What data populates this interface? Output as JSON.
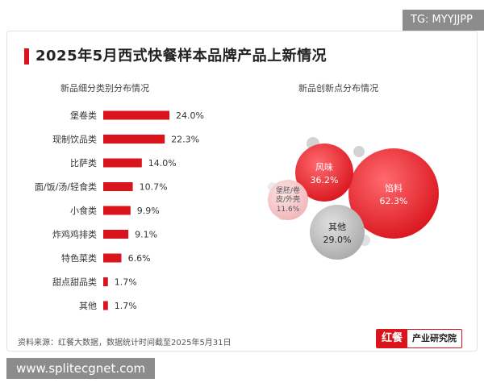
{
  "overlays": {
    "tg_badge": "TG: MYYJJPP",
    "url_badge": "www.splitecgnet.com"
  },
  "header": {
    "title": "2025年5月西式快餐样本品牌产品上新情况"
  },
  "footer": {
    "source": "资料来源：红餐大数据，数据统计时间截至2025年5月31日",
    "logo_left": "红餐",
    "logo_right": "产业研究院"
  },
  "colors": {
    "accent_red": "#d9141c",
    "bubble_red": "#e8323a",
    "bubble_gray": "#bdbdbd"
  },
  "chart_data": [
    {
      "type": "bar",
      "orientation": "horizontal",
      "title": "新品细分类别分布情况",
      "categories": [
        "堡卷类",
        "现制饮品类",
        "比萨类",
        "面/饭/汤/轻食类",
        "小食类",
        "炸鸡鸡排类",
        "特色菜类",
        "甜点甜品类",
        "其他"
      ],
      "values": [
        24.0,
        22.3,
        14.0,
        10.7,
        9.9,
        9.1,
        6.6,
        1.7,
        1.7
      ],
      "value_labels": [
        "24.0%",
        "22.3%",
        "14.0%",
        "10.7%",
        "9.9%",
        "9.1%",
        "6.6%",
        "1.7%",
        "1.7%"
      ],
      "unit": "%",
      "xlim": [
        0,
        30
      ]
    },
    {
      "type": "bubble",
      "title": "新品创新点分布情况",
      "points": [
        {
          "name": "馅料",
          "value": 62.3,
          "label": "62.3%",
          "color": "#e8323a"
        },
        {
          "name": "风味",
          "value": 36.2,
          "label": "36.2%",
          "color": "#e8323a"
        },
        {
          "name": "其他",
          "value": 29.0,
          "label": "29.0%",
          "color": "#bdbdbd"
        },
        {
          "name": "堡胚/卷皮/外壳",
          "name_lines": [
            "堡胚/卷",
            "皮/外壳"
          ],
          "value": 11.6,
          "label": "11.6%",
          "color": "#f2c5c7"
        }
      ]
    }
  ]
}
